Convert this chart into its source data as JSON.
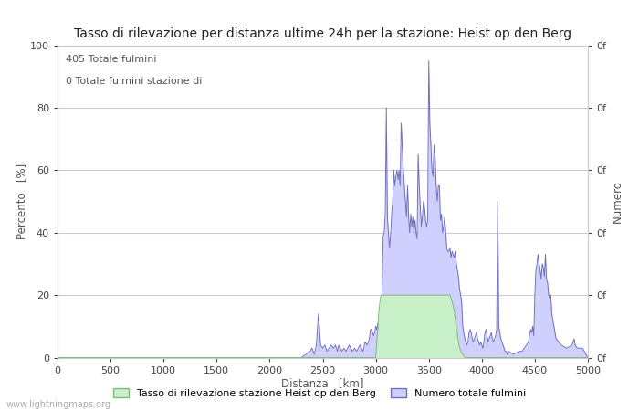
{
  "title": "Tasso di rilevazione per distanza ultime 24h per la stazione: Heist op den Berg",
  "xlabel": "Distanza   [km]",
  "ylabel_left": "Percento   [%]",
  "ylabel_right": "Numero",
  "annotation_line1": "405 Totale fulmini",
  "annotation_line2": "0 Totale fulmini stazione di",
  "xlim": [
    0,
    5000
  ],
  "ylim": [
    0,
    100
  ],
  "xticks": [
    0,
    500,
    1000,
    1500,
    2000,
    2500,
    3000,
    3500,
    4000,
    4500,
    5000
  ],
  "yticks": [
    0,
    20,
    40,
    60,
    80,
    100
  ],
  "legend_green_label": "Tasso di rilevazione stazione Heist op den Berg",
  "legend_blue_label": "Numero totale fulmini",
  "fill_blue_color": "#d0d0ff",
  "fill_blue_edge": "#7070bb",
  "fill_green_color": "#c8f0c8",
  "fill_green_edge": "#80b880",
  "watermark": "www.lightningmaps.org",
  "grid_color": "#cccccc",
  "background_color": "#ffffff",
  "title_fontsize": 10,
  "axis_fontsize": 8.5,
  "tick_fontsize": 8
}
